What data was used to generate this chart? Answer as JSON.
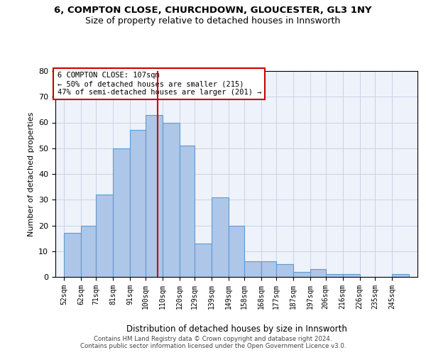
{
  "title1": "6, COMPTON CLOSE, CHURCHDOWN, GLOUCESTER, GL3 1NY",
  "title2": "Size of property relative to detached houses in Innsworth",
  "xlabel": "Distribution of detached houses by size in Innsworth",
  "ylabel": "Number of detached properties",
  "categories": [
    "52sqm",
    "62sqm",
    "71sqm",
    "81sqm",
    "91sqm",
    "100sqm",
    "110sqm",
    "120sqm",
    "129sqm",
    "139sqm",
    "149sqm",
    "158sqm",
    "168sqm",
    "177sqm",
    "187sqm",
    "197sqm",
    "206sqm",
    "216sqm",
    "226sqm",
    "235sqm",
    "245sqm"
  ],
  "values": [
    17,
    20,
    32,
    50,
    57,
    63,
    60,
    51,
    13,
    31,
    20,
    6,
    6,
    5,
    2,
    3,
    1,
    1,
    0,
    0,
    1
  ],
  "bar_color": "#aec6e8",
  "bar_edge_color": "#5b9bd5",
  "vline_x": 107,
  "vline_color": "#cc0000",
  "annotation_text": "6 COMPTON CLOSE: 107sqm\n← 50% of detached houses are smaller (215)\n47% of semi-detached houses are larger (201) →",
  "annotation_box_color": "#ffffff",
  "annotation_box_edge": "#cc0000",
  "grid_color": "#c8d4e8",
  "bg_color": "#eef2fa",
  "ylim": [
    0,
    80
  ],
  "yticks": [
    0,
    10,
    20,
    30,
    40,
    50,
    60,
    70,
    80
  ],
  "bin_starts": [
    52,
    62,
    71,
    81,
    91,
    100,
    110,
    120,
    129,
    139,
    149,
    158,
    168,
    177,
    187,
    197,
    206,
    216,
    226,
    235,
    245
  ],
  "bin_ends": [
    62,
    71,
    81,
    91,
    100,
    110,
    120,
    129,
    139,
    149,
    158,
    168,
    177,
    187,
    197,
    206,
    216,
    226,
    235,
    245,
    255
  ],
  "footer1": "Contains HM Land Registry data © Crown copyright and database right 2024.",
  "footer2": "Contains public sector information licensed under the Open Government Licence v3.0."
}
